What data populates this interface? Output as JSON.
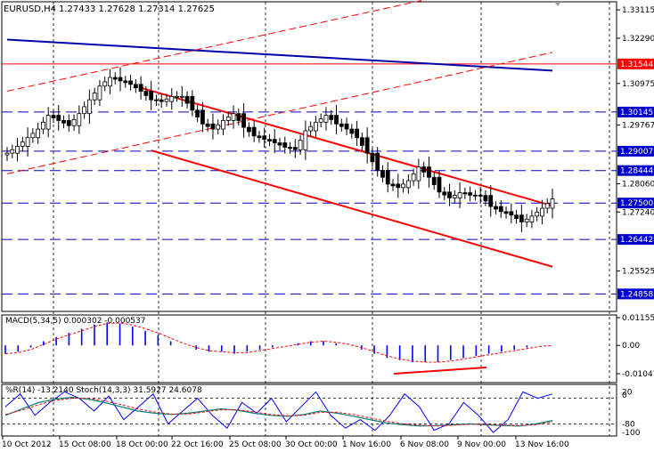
{
  "header": {
    "symbol": "EURUSD,H4",
    "ohlc": "1.27433 1.27628 1.27314 1.27625"
  },
  "colors": {
    "candle": "#000000",
    "level_dash": "#0000cc",
    "resistance": "#ff0000",
    "trend_blue": "#0000aa",
    "channel": "#ff0000",
    "macd_hist": "#0000ff",
    "macd_signal": "#ff0000",
    "wpr": "#0000ff",
    "stoch_main": "#008080",
    "stoch_signal": "#ff0000",
    "label_blue_bg": "#0000cc",
    "label_red_bg": "#ff0000"
  },
  "price_axis": {
    "ticks": [
      "1.33115",
      "1.32290",
      "1.30975",
      "1.29767",
      "1.28060",
      "1.27240",
      "1.25525"
    ],
    "labels": [
      {
        "text": "1.31544",
        "style": "red"
      },
      {
        "text": "1.30145",
        "style": "blue"
      },
      {
        "text": "1.29007",
        "style": "blue"
      },
      {
        "text": "1.28444",
        "style": "blue"
      },
      {
        "text": "1.27500",
        "style": "blue"
      },
      {
        "text": "1.26442",
        "style": "blue"
      },
      {
        "text": "1.24858",
        "style": "blue"
      }
    ]
  },
  "macd": {
    "label": "MACD(5,34,5) 0.000302 -0.000537",
    "ticks": [
      "0.01155",
      "0.00",
      "-0.01047"
    ]
  },
  "oscillator": {
    "label": "%R(14) -13.2140  Stoch(14,3,3) 31.5927 24.6078",
    "ticks": [
      "20",
      "0",
      "-80",
      "-100"
    ]
  },
  "time_axis": [
    "10 Oct 2012",
    "15 Oct 08:00",
    "18 Oct 00:00",
    "22 Oct 16:00",
    "25 Oct 08:00",
    "30 Oct 00:00",
    "1 Nov 16:00",
    "6 Nov 08:00",
    "9 Nov 00:00",
    "13 Nov 16:00"
  ],
  "chart_data": {
    "type": "candlestick",
    "title": "EURUSD,H4",
    "ylim": [
      1.2435,
      1.3335
    ],
    "x": [
      "10 Oct 2012",
      "15 Oct 08:00",
      "18 Oct 00:00",
      "22 Oct 16:00",
      "25 Oct 08:00",
      "30 Oct 00:00",
      "1 Nov 16:00",
      "6 Nov 08:00",
      "9 Nov 00:00",
      "13 Nov 16:00"
    ],
    "close_path": [
      1.2895,
      1.2915,
      1.294,
      1.2965,
      1.3005,
      1.299,
      1.2975,
      1.301,
      1.305,
      1.309,
      1.3115,
      1.3105,
      1.3095,
      1.3075,
      1.305,
      1.3045,
      1.306,
      1.306,
      1.302,
      1.298,
      1.2965,
      1.299,
      1.301,
      1.297,
      1.2945,
      1.2935,
      1.2925,
      1.2912,
      1.2905,
      1.296,
      1.2985,
      1.3005,
      1.298,
      1.2965,
      1.294,
      1.2895,
      1.2845,
      1.2805,
      1.2795,
      1.2815,
      1.2855,
      1.2825,
      1.2782,
      1.2765,
      1.278,
      1.2773,
      1.2772,
      1.274,
      1.2725,
      1.2715,
      1.2695,
      1.2712,
      1.2735,
      1.2762
    ],
    "horizontal_levels": [
      1.31544,
      1.30145,
      1.29007,
      1.28444,
      1.275,
      1.26442,
      1.24858
    ],
    "trend_lines": {
      "blue_resistance": [
        [
          0,
          1.3225
        ],
        [
          53,
          1.3135
        ]
      ],
      "channel_upper": [
        [
          13,
          1.3085
        ],
        [
          53,
          1.2742
        ]
      ],
      "channel_lower": [
        [
          14,
          1.2903
        ],
        [
          53,
          1.2565
        ]
      ],
      "dashed_upper": [
        [
          0,
          1.3075
        ],
        [
          44,
          1.3363
        ]
      ],
      "dashed_lower": [
        [
          0,
          1.2835
        ],
        [
          53,
          1.3188
        ]
      ]
    },
    "macd_hist": [
      -0.004,
      -0.003,
      -0.001,
      0.002,
      0.004,
      0.006,
      0.008,
      0.01,
      0.011,
      0.0105,
      0.009,
      0.007,
      0.005,
      0.002,
      0.0,
      -0.002,
      -0.003,
      -0.003,
      -0.004,
      -0.003,
      -0.002,
      -0.001,
      0.0,
      0.001,
      0.002,
      0.002,
      0.001,
      0.0,
      -0.002,
      -0.004,
      -0.006,
      -0.007,
      -0.008,
      -0.008,
      -0.008,
      -0.007,
      -0.006,
      -0.005,
      -0.004,
      -0.003,
      -0.002,
      -0.001,
      0.0,
      0.0
    ],
    "wpr": [
      -40,
      -10,
      -60,
      -30,
      -5,
      -20,
      -50,
      -15,
      -70,
      -40,
      -10,
      -80,
      -50,
      -20,
      -60,
      -90,
      -30,
      -55,
      -20,
      -75,
      -40,
      -5,
      -60,
      -90,
      -70,
      -95,
      -60,
      -10,
      -40,
      -95,
      -80,
      -30,
      -60,
      -100,
      -70,
      -5,
      -20,
      -10
    ],
    "stoch_main": [
      -60,
      -45,
      -30,
      -22,
      -18,
      -22,
      -30,
      -40,
      -50,
      -55,
      -58,
      -55,
      -50,
      -45,
      -48,
      -55,
      -60,
      -62,
      -58,
      -50,
      -55,
      -62,
      -70,
      -78,
      -82,
      -85,
      -84,
      -82,
      -80,
      -82,
      -84,
      -85,
      -80,
      -72
    ],
    "stoch_signal": [
      -58,
      -48,
      -35,
      -25,
      -20,
      -20,
      -26,
      -35,
      -45,
      -52,
      -57,
      -57,
      -52,
      -47,
      -47,
      -52,
      -58,
      -61,
      -60,
      -53,
      -53,
      -58,
      -66,
      -74,
      -80,
      -83,
      -85,
      -83,
      -81,
      -81,
      -83,
      -84,
      -82,
      -75
    ]
  }
}
